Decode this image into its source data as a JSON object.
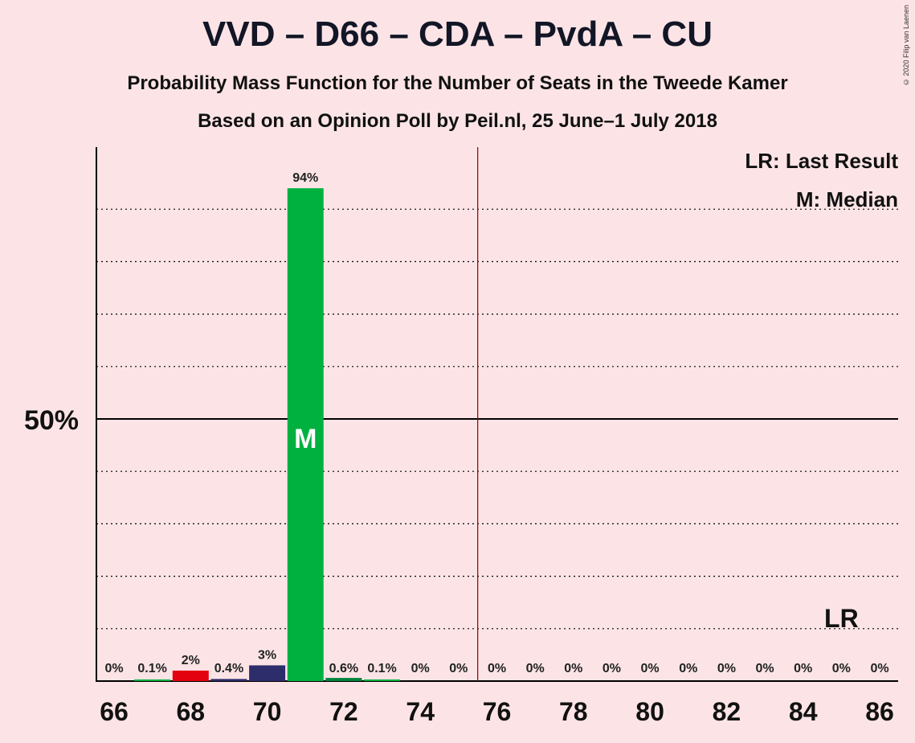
{
  "chart_data": {
    "type": "bar",
    "title": "VVD – D66 – CDA – PvdA – CU",
    "subtitle": "Probability Mass Function for the Number of Seats in the Tweede Kamer",
    "source": "Based on an Opinion Poll by Peil.nl, 25 June–1 July 2018",
    "copyright": "© 2020 Filip van Laenen",
    "x": [
      66,
      67,
      68,
      69,
      70,
      71,
      72,
      73,
      74,
      75,
      76,
      77,
      78,
      79,
      80,
      81,
      82,
      83,
      84,
      85,
      86
    ],
    "values": [
      0,
      0.1,
      2,
      0.4,
      3,
      94,
      0.6,
      0.1,
      0,
      0,
      0,
      0,
      0,
      0,
      0,
      0,
      0,
      0,
      0,
      0,
      0
    ],
    "value_labels": [
      "0%",
      "0.1%",
      "2%",
      "0.4%",
      "3%",
      "94%",
      "0.6%",
      "0.1%",
      "0%",
      "0%",
      "0%",
      "0%",
      "0%",
      "0%",
      "0%",
      "0%",
      "0%",
      "0%",
      "0%",
      "0%",
      "0%"
    ],
    "bar_colors": [
      "#00b140",
      "#00b140",
      "#e3000f",
      "#2d2d6b",
      "#2d2d6b",
      "#00b140",
      "#00843d",
      "#00b140",
      "#00b140",
      "#00b140",
      "#00b140",
      "#00b140",
      "#00b140",
      "#00b140",
      "#00b140",
      "#00b140",
      "#00b140",
      "#00b140",
      "#00b140",
      "#00b140",
      "#00b140"
    ],
    "x_tick_labels": [
      "66",
      "68",
      "70",
      "72",
      "74",
      "76",
      "78",
      "80",
      "82",
      "84",
      "86"
    ],
    "y_tick_label": "50%",
    "ylim": [
      0,
      100
    ],
    "grid": "dotted, every 10%",
    "majority_line": 75.5,
    "median": 71,
    "median_label": "M",
    "last_result": 85,
    "last_result_label": "LR",
    "legend": [
      "LR: Last Result",
      "M: Median"
    ],
    "legend_position": "top-right",
    "colors": {
      "background": "#fce4e6",
      "majority_line": "#8b0000",
      "axis": "#000000"
    }
  }
}
